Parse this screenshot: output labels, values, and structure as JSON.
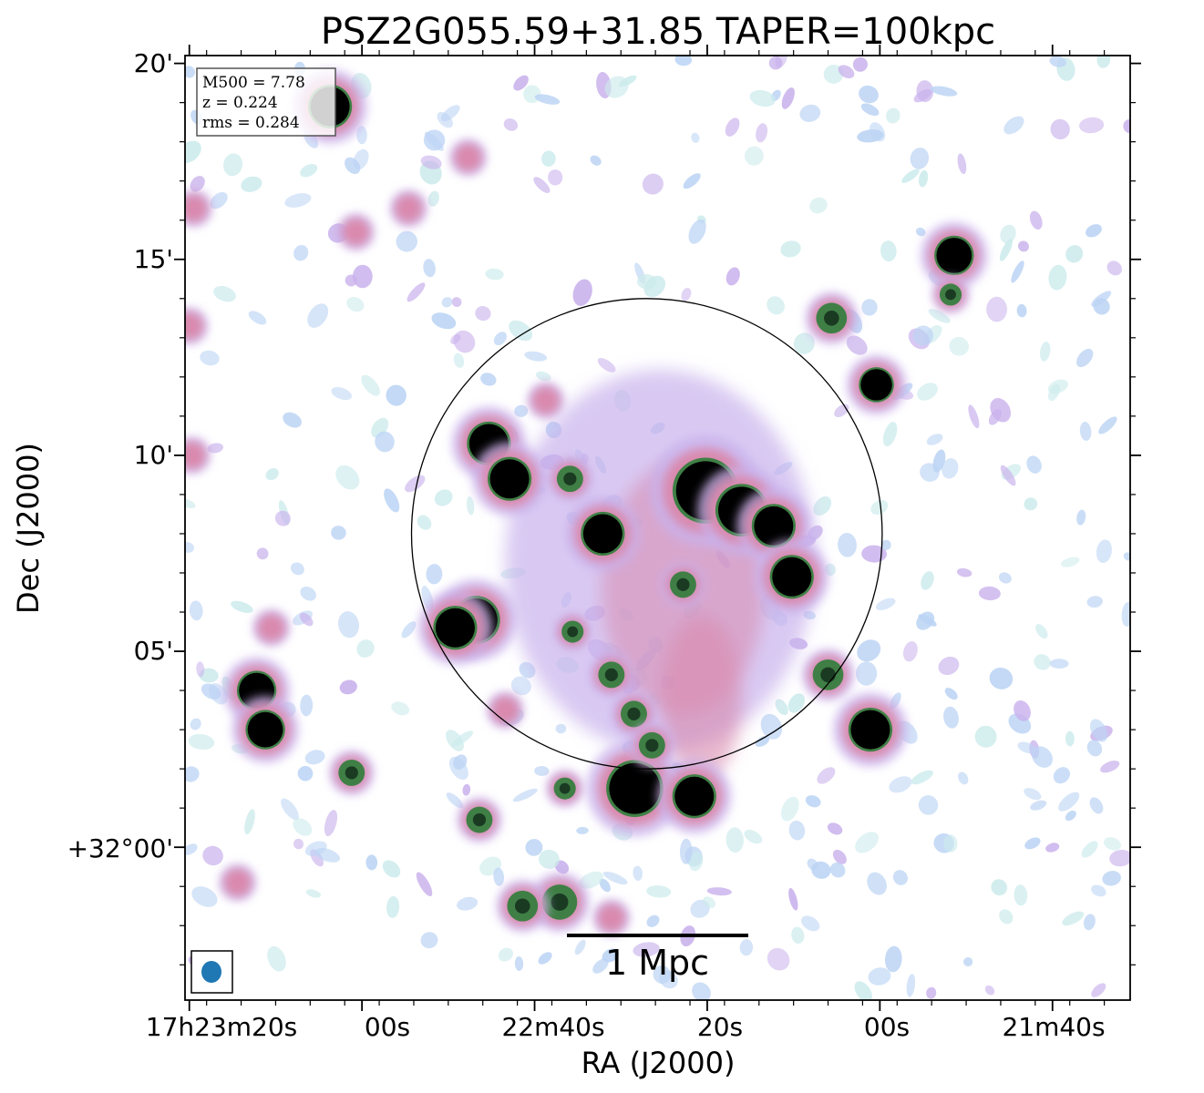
{
  "title": "PSZ2G055.59+31.85 TAPER=100kpc",
  "xlabel": "RA (J2000)",
  "ylabel": "Dec (J2000)",
  "info_box": {
    "line1": "M500 = 7.78",
    "line2": "z = 0.224",
    "line3": "rms = 0.284"
  },
  "scale_bar_label": "1 Mpc",
  "colors": {
    "faint": "#bcd4f4",
    "faint_teal": "#cdebec",
    "lavender": "#c9b2ec",
    "pink": "#d98aae",
    "green": "#3f7f45",
    "dark_green": "#1a3a22",
    "source_core": "#000000",
    "beam": "#1f77b4"
  },
  "chart_data": {
    "type": "heatmap",
    "title": "PSZ2G055.59+31.85 TAPER=100kpc",
    "xlabel": "RA (J2000)",
    "ylabel": "Dec (J2000)",
    "x_ticks": [
      "17h23m20s",
      "00s",
      "22m40s",
      "20s",
      "00s",
      "21m40s"
    ],
    "y_ticks": [
      "20'",
      "15'",
      "10'",
      "05'",
      "+32°00'"
    ],
    "x_tick_values_s": [
      1000,
      980,
      960,
      940,
      920,
      900
    ],
    "y_tick_values_arcmin": [
      20,
      15,
      10,
      5,
      0
    ],
    "x_range_s": [
      1000.5,
      891.0
    ],
    "y_range_arcmin": [
      -3.9,
      20.2
    ],
    "M500": 7.78,
    "z": 0.224,
    "rms": 0.284,
    "scale_bar": "1 Mpc",
    "circle_center": {
      "ra_s": 947.0,
      "dec_arcmin": 8.0
    },
    "circle_radius_arcmin": 6.0,
    "sources": [
      {
        "ra_s": 952.1,
        "dec_arcmin": 8.0,
        "size": 1.0,
        "strength": 3
      },
      {
        "ra_s": 940.2,
        "dec_arcmin": 9.1,
        "size": 1.5,
        "strength": 3
      },
      {
        "ra_s": 936.0,
        "dec_arcmin": 8.6,
        "size": 1.2,
        "strength": 3
      },
      {
        "ra_s": 932.3,
        "dec_arcmin": 8.2,
        "size": 1.0,
        "strength": 3
      },
      {
        "ra_s": 930.2,
        "dec_arcmin": 6.9,
        "size": 1.0,
        "strength": 3
      },
      {
        "ra_s": 965.3,
        "dec_arcmin": 10.3,
        "size": 1.0,
        "strength": 3
      },
      {
        "ra_s": 962.9,
        "dec_arcmin": 9.4,
        "size": 1.0,
        "strength": 3
      },
      {
        "ra_s": 966.8,
        "dec_arcmin": 5.8,
        "size": 1.1,
        "strength": 3
      },
      {
        "ra_s": 969.2,
        "dec_arcmin": 5.6,
        "size": 1.0,
        "strength": 3
      },
      {
        "ra_s": 948.4,
        "dec_arcmin": 1.5,
        "size": 1.3,
        "strength": 3
      },
      {
        "ra_s": 941.5,
        "dec_arcmin": 1.3,
        "size": 1.0,
        "strength": 3
      },
      {
        "ra_s": 911.4,
        "dec_arcmin": 15.1,
        "size": 0.9,
        "strength": 3
      },
      {
        "ra_s": 920.4,
        "dec_arcmin": 11.8,
        "size": 0.8,
        "strength": 3
      },
      {
        "ra_s": 921.1,
        "dec_arcmin": 3.0,
        "size": 1.0,
        "strength": 3
      },
      {
        "ra_s": 992.2,
        "dec_arcmin": 4.0,
        "size": 0.9,
        "strength": 3
      },
      {
        "ra_s": 991.2,
        "dec_arcmin": 3.0,
        "size": 0.9,
        "strength": 3
      },
      {
        "ra_s": 983.7,
        "dec_arcmin": 18.9,
        "size": 1.0,
        "strength": 3
      },
      {
        "ra_s": 955.9,
        "dec_arcmin": 9.4,
        "size": 0.6,
        "strength": 2
      },
      {
        "ra_s": 981.2,
        "dec_arcmin": 1.9,
        "size": 0.6,
        "strength": 2
      },
      {
        "ra_s": 966.4,
        "dec_arcmin": 0.7,
        "size": 0.6,
        "strength": 2
      },
      {
        "ra_s": 956.5,
        "dec_arcmin": 1.5,
        "size": 0.5,
        "strength": 2
      },
      {
        "ra_s": 957.1,
        "dec_arcmin": -1.4,
        "size": 0.8,
        "strength": 2
      },
      {
        "ra_s": 961.4,
        "dec_arcmin": -1.5,
        "size": 0.7,
        "strength": 2
      },
      {
        "ra_s": 951.1,
        "dec_arcmin": 4.4,
        "size": 0.6,
        "strength": 2
      },
      {
        "ra_s": 948.5,
        "dec_arcmin": 3.4,
        "size": 0.6,
        "strength": 2
      },
      {
        "ra_s": 946.4,
        "dec_arcmin": 2.6,
        "size": 0.6,
        "strength": 2
      },
      {
        "ra_s": 925.6,
        "dec_arcmin": 13.5,
        "size": 0.7,
        "strength": 2
      },
      {
        "ra_s": 926.0,
        "dec_arcmin": 4.4,
        "size": 0.7,
        "strength": 2
      },
      {
        "ra_s": 911.8,
        "dec_arcmin": 14.1,
        "size": 0.5,
        "strength": 2
      },
      {
        "ra_s": 942.8,
        "dec_arcmin": 6.7,
        "size": 0.6,
        "strength": 2
      },
      {
        "ra_s": 955.6,
        "dec_arcmin": 5.5,
        "size": 0.5,
        "strength": 2
      },
      {
        "ra_s": 990.5,
        "dec_arcmin": 5.6,
        "size": 0.5,
        "strength": 1
      },
      {
        "ra_s": 958.7,
        "dec_arcmin": 11.4,
        "size": 0.5,
        "strength": 1
      },
      {
        "ra_s": 980.7,
        "dec_arcmin": 15.7,
        "size": 0.5,
        "strength": 1
      },
      {
        "ra_s": 974.6,
        "dec_arcmin": 16.3,
        "size": 0.5,
        "strength": 1
      },
      {
        "ra_s": 967.7,
        "dec_arcmin": 17.6,
        "size": 0.5,
        "strength": 1
      },
      {
        "ra_s": 999.5,
        "dec_arcmin": 16.3,
        "size": 0.5,
        "strength": 1
      },
      {
        "ra_s": 1000.0,
        "dec_arcmin": 13.3,
        "size": 0.5,
        "strength": 1
      },
      {
        "ra_s": 999.7,
        "dec_arcmin": 10.0,
        "size": 0.5,
        "strength": 1
      },
      {
        "ra_s": 963.4,
        "dec_arcmin": 3.5,
        "size": 0.5,
        "strength": 1
      },
      {
        "ra_s": 994.4,
        "dec_arcmin": -0.9,
        "size": 0.5,
        "strength": 1
      },
      {
        "ra_s": 951.1,
        "dec_arcmin": -1.8,
        "size": 0.5,
        "strength": 1
      }
    ]
  }
}
